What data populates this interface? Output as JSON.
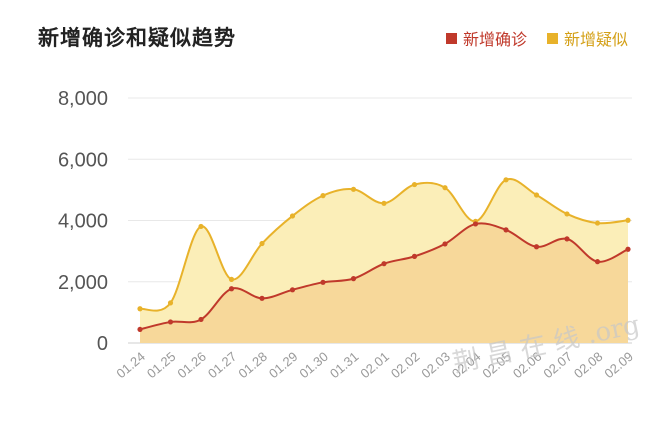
{
  "header": {
    "title": "新增确诊和疑似趋势"
  },
  "legend": [
    {
      "label": "新增确诊",
      "color": "#c0392b"
    },
    {
      "label": "新增疑似",
      "color": "#e8b22a"
    }
  ],
  "watermark": "荆 昌 在 线 .org",
  "chart_data": {
    "type": "area",
    "title": "新增确诊和疑似趋势",
    "categories": [
      "01.24",
      "01.25",
      "01.26",
      "01.27",
      "01.28",
      "01.29",
      "01.30",
      "01.31",
      "02.01",
      "02.02",
      "02.03",
      "02.04",
      "02.05",
      "02.06",
      "02.07",
      "02.08",
      "02.09"
    ],
    "ylim": [
      0,
      8000
    ],
    "yticks": [
      "0",
      "2,000",
      "4,000",
      "6,000",
      "8,000"
    ],
    "series": [
      {
        "name": "新增确诊",
        "color": "#c0392b",
        "fill": "#f7d89a",
        "values": [
          444,
          688,
          769,
          1771,
          1459,
          1737,
          1982,
          2102,
          2590,
          2829,
          3235,
          3887,
          3694,
          3143,
          3399,
          2656,
          3062
        ]
      },
      {
        "name": "新增疑似",
        "color": "#e8b22a",
        "fill": "#fbeeb8",
        "values": [
          1118,
          1309,
          3806,
          2077,
          3248,
          4148,
          4812,
          5019,
          4562,
          5173,
          5072,
          3971,
          5328,
          4833,
          4214,
          3916,
          4008
        ]
      }
    ],
    "grid": true
  }
}
